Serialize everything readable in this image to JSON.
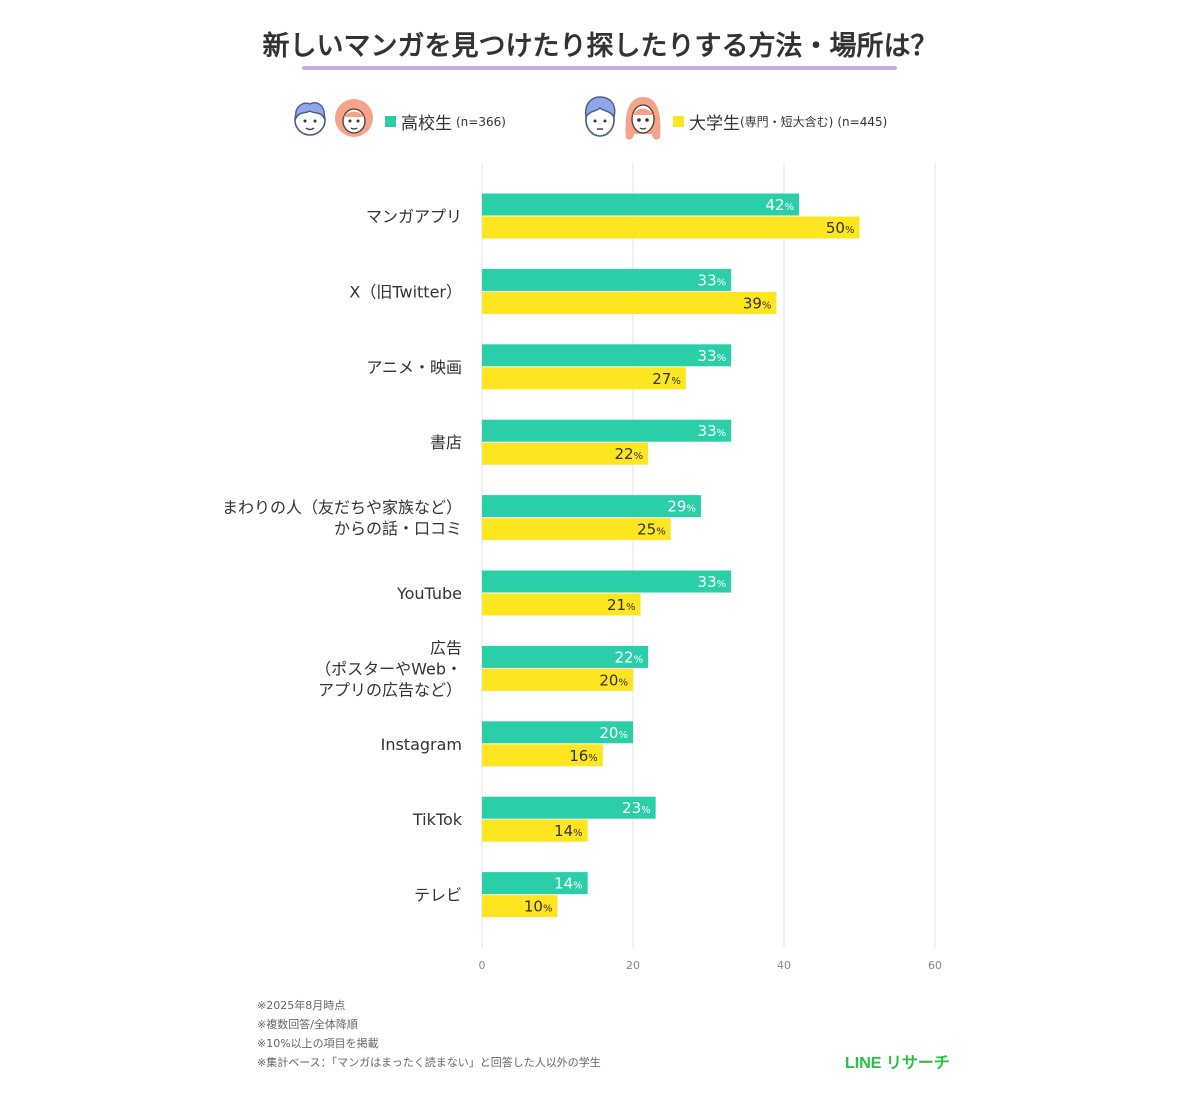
{
  "title": "新しいマンガを見つけたり探したりする方法・場所は？",
  "legend": {
    "high_school": {
      "label": "高校生",
      "n": "(n=366)",
      "color": "#2acfa8"
    },
    "university": {
      "label": "大学生",
      "sub": "(専門・短大含む)",
      "n": "(n=445)",
      "color": "#fde51f"
    }
  },
  "chart_data": {
    "type": "bar",
    "orientation": "horizontal",
    "categories": [
      [
        "マンガアプリ"
      ],
      [
        "X（旧Twitter）"
      ],
      [
        "アニメ・映画"
      ],
      [
        "書店"
      ],
      [
        "まわりの人（友だちや家族など）",
        "からの話・口コミ"
      ],
      [
        "YouTube"
      ],
      [
        "広告",
        "（ポスターやWeb・",
        "アプリの広告など）"
      ],
      [
        "Instagram"
      ],
      [
        "TikTok"
      ],
      [
        "テレビ"
      ]
    ],
    "series": [
      {
        "name": "高校生",
        "values": [
          42,
          33,
          33,
          33,
          29,
          33,
          22,
          20,
          23,
          14
        ]
      },
      {
        "name": "大学生",
        "values": [
          50,
          39,
          27,
          22,
          25,
          21,
          20,
          16,
          14,
          10
        ]
      }
    ],
    "value_suffix": "%",
    "xlim": [
      0,
      60
    ],
    "xticks": [
      "0",
      "20",
      "40",
      "60"
    ],
    "grid": true
  },
  "footnotes": [
    "※2025年8月時点",
    "※複数回答/全体降順",
    "※10%以上の項目を掲載",
    "※集計ベース：「マンガはまったく読まない」と回答した人以外の学生"
  ],
  "brand": "LINE リサーチ",
  "icons": [
    "boy-face-icon",
    "girl-face-icon",
    "young-man-face-icon",
    "young-woman-face-icon"
  ]
}
